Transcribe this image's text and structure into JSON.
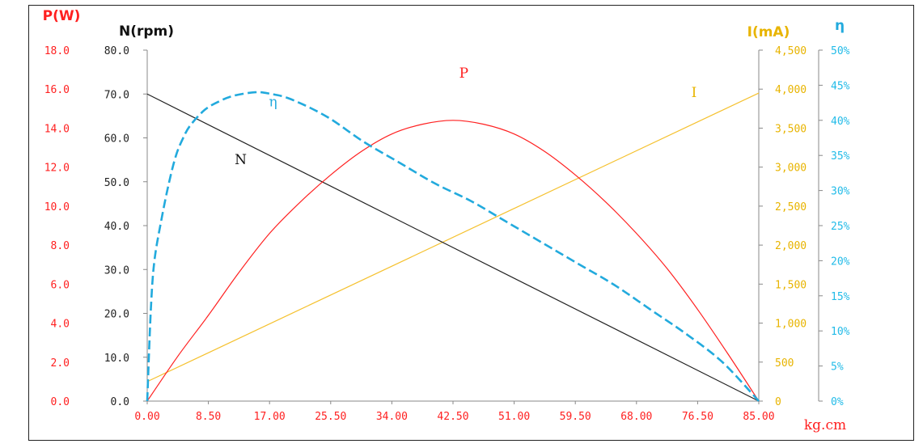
{
  "chart_data": {
    "type": "line",
    "title": "",
    "xlabel": "kg.cm",
    "xlim": [
      0,
      85
    ],
    "x_ticks": [
      "0.00",
      "8.50",
      "17.00",
      "25.50",
      "34.00",
      "42.50",
      "51.00",
      "59.50",
      "68.00",
      "76.50",
      "85.00"
    ],
    "axes": {
      "P": {
        "label": "P(W)",
        "ylim": [
          0,
          18
        ],
        "ticks": [
          "0.0",
          "2.0",
          "4.0",
          "6.0",
          "8.0",
          "10.0",
          "12.0",
          "14.0",
          "16.0",
          "18.0"
        ]
      },
      "N": {
        "label": "N(rpm)",
        "ylim": [
          0,
          80
        ],
        "ticks": [
          "0.0",
          "10.0",
          "20.0",
          "30.0",
          "40.0",
          "50.0",
          "60.0",
          "70.0",
          "80.0"
        ]
      },
      "I": {
        "label": "I(mA)",
        "ylim": [
          0,
          4500
        ],
        "ticks": [
          "0",
          "500",
          "1,000",
          "1,500",
          "2,000",
          "2,500",
          "3,000",
          "3,500",
          "4,000",
          "4,500"
        ]
      },
      "eta": {
        "label": "η",
        "ylim": [
          0,
          50
        ],
        "ticks": [
          "0%",
          "5%",
          "10%",
          "15%",
          "20%",
          "25%",
          "30%",
          "35%",
          "40%",
          "45%",
          "50%"
        ]
      }
    },
    "series": [
      {
        "name": "P",
        "axis": "P",
        "color": "#ff2020",
        "style": "solid",
        "x": [
          0,
          4.25,
          8.5,
          12.75,
          17,
          21.25,
          25.5,
          29.75,
          34,
          38.25,
          42.5,
          46.75,
          51,
          55.25,
          59.5,
          63.75,
          68,
          72.25,
          76.5,
          80.75,
          85
        ],
        "values": [
          0,
          2.3,
          4.4,
          6.6,
          8.6,
          10.2,
          11.6,
          12.8,
          13.7,
          14.2,
          14.4,
          14.2,
          13.7,
          12.8,
          11.6,
          10.2,
          8.6,
          6.8,
          4.7,
          2.4,
          0
        ]
      },
      {
        "name": "N",
        "axis": "N",
        "color": "#222222",
        "style": "solid",
        "x": [
          0,
          85
        ],
        "values": [
          70,
          0
        ]
      },
      {
        "name": "I",
        "axis": "I",
        "color": "#f5c12e",
        "style": "solid",
        "x": [
          0,
          85
        ],
        "values": [
          250,
          3950
        ]
      },
      {
        "name": "η",
        "axis": "eta",
        "color": "#22aadd",
        "style": "dashed",
        "x": [
          0,
          0.5,
          1,
          2,
          3,
          4,
          5,
          6,
          8,
          10,
          12,
          15,
          17,
          20,
          25,
          30,
          35,
          40,
          45,
          50,
          55,
          60,
          65,
          70,
          75,
          80,
          85
        ],
        "values": [
          0,
          13,
          20,
          26,
          31,
          35,
          37.5,
          39.3,
          41.5,
          42.7,
          43.5,
          44,
          43.8,
          43,
          40.5,
          37,
          34,
          31,
          28.5,
          25.5,
          22.5,
          19.5,
          16.5,
          13,
          9.5,
          5.5,
          0
        ]
      }
    ],
    "annotations": [
      {
        "text": "P",
        "series": "P",
        "x": 44,
        "y": 16.6
      },
      {
        "text": "η",
        "series": "η",
        "x": 17.5,
        "y": 42
      },
      {
        "text": "N",
        "series": "N",
        "x": 13,
        "y": 54
      },
      {
        "text": "I",
        "series": "I",
        "x": 76,
        "y": 3900
      }
    ],
    "grid": false
  }
}
